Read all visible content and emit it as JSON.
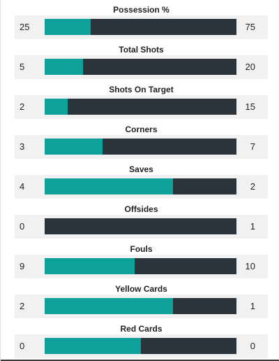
{
  "stats": [
    {
      "label": "Possession %",
      "home": "25",
      "away": "75",
      "home_share": 0.24
    },
    {
      "label": "Total Shots",
      "home": "5",
      "away": "20",
      "home_share": 0.2
    },
    {
      "label": "Shots On Target",
      "home": "2",
      "away": "15",
      "home_share": 0.12
    },
    {
      "label": "Corners",
      "home": "3",
      "away": "7",
      "home_share": 0.3
    },
    {
      "label": "Saves",
      "home": "4",
      "away": "2",
      "home_share": 0.67
    },
    {
      "label": "Offsides",
      "home": "0",
      "away": "1",
      "home_share": 0.0
    },
    {
      "label": "Fouls",
      "home": "9",
      "away": "10",
      "home_share": 0.47
    },
    {
      "label": "Yellow Cards",
      "home": "2",
      "away": "1",
      "home_share": 0.67
    },
    {
      "label": "Red Cards",
      "home": "0",
      "away": "0",
      "home_share": 0.5
    }
  ],
  "colors": {
    "home": "#0ea199",
    "away": "#2b333b",
    "row_bg": "#f1f1f1"
  }
}
